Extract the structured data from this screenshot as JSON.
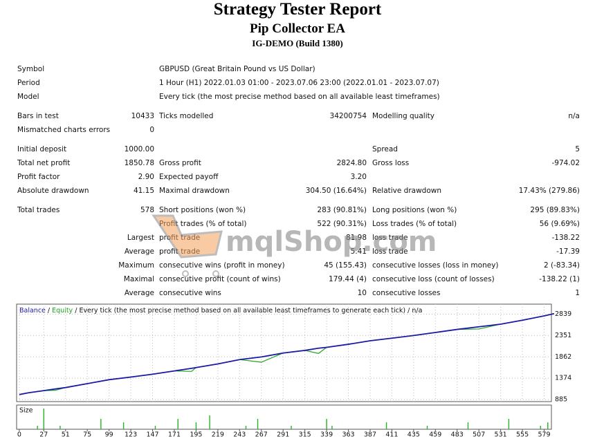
{
  "header": {
    "title": "Strategy Tester Report",
    "subtitle": "Pip Collector EA",
    "build": "IG-DEMO (Build 1380)"
  },
  "report": {
    "sections": [
      [
        [
          "Symbol",
          null,
          "GBPUSD (Great Britain Pound vs US Dollar)",
          null,
          null,
          null
        ],
        [
          "Period",
          null,
          "1 Hour (H1) 2022.01.03 01:00 - 2023.07.06 23:00 (2022.01.01 - 2023.07.07)",
          null,
          null,
          null
        ],
        [
          "Model",
          null,
          "Every tick (the most precise method based on all available least timeframes)",
          null,
          null,
          null
        ]
      ],
      [
        [
          "Bars in test",
          "10433",
          "Ticks modelled",
          "34200754",
          "Modelling quality",
          "n/a"
        ],
        [
          "Mismatched charts errors",
          "0",
          null,
          null,
          null,
          null
        ]
      ],
      [
        [
          "Initial deposit",
          "1000.00",
          null,
          null,
          "Spread",
          "5"
        ],
        [
          "Total net profit",
          "1850.78",
          "Gross profit",
          "2824.80",
          "Gross loss",
          "-974.02"
        ],
        [
          "Profit factor",
          "2.90",
          "Expected payoff",
          "3.20",
          null,
          null
        ],
        [
          "Absolute drawdown",
          "41.15",
          "Maximal drawdown",
          "304.50 (16.64%)",
          "Relative drawdown",
          "17.43% (279.86)"
        ]
      ],
      [
        [
          "Total trades",
          "578",
          "Short positions (won %)",
          "283 (90.81%)",
          "Long positions (won %)",
          "295 (89.83%)"
        ],
        [
          null,
          null,
          "Profit trades (% of total)",
          "522 (90.31%)",
          "Loss trades (% of total)",
          "56 (9.69%)"
        ],
        [
          null,
          "Largest",
          "profit trade",
          "81.98",
          "loss trade",
          "-138.22"
        ],
        [
          null,
          "Average",
          "profit trade",
          "5.41",
          "loss trade",
          "-17.39"
        ],
        [
          null,
          "Maximum",
          "consecutive wins (profit in money)",
          "45 (155.43)",
          "consecutive losses (loss in money)",
          "2 (-83.34)"
        ],
        [
          null,
          "Maximal",
          "consecutive profit (count of wins)",
          "179.44 (4)",
          "consecutive loss (count of losses)",
          "-138.22 (1)"
        ],
        [
          null,
          "Average",
          "consecutive wins",
          "10",
          "consecutive losses",
          "1"
        ]
      ]
    ]
  },
  "watermark": "mqlShop.com",
  "chart_data": {
    "type": "line",
    "description": "Every tick (the most precise method based on all available least timeframes to generate each tick)",
    "quality": "n/a",
    "x": [
      0,
      10,
      27,
      40,
      51,
      75,
      99,
      123,
      147,
      171,
      190,
      195,
      219,
      243,
      267,
      291,
      315,
      330,
      339,
      363,
      387,
      411,
      435,
      459,
      483,
      507,
      531,
      555,
      579,
      590
    ],
    "series": [
      {
        "name": "Balance",
        "color": "#1a1aa6",
        "values": [
          1000,
          1040,
          1090,
          1130,
          1160,
          1250,
          1340,
          1400,
          1465,
          1540,
          1600,
          1618,
          1700,
          1800,
          1860,
          1950,
          2010,
          2060,
          2080,
          2150,
          2230,
          2290,
          2350,
          2420,
          2490,
          2550,
          2610,
          2700,
          2800,
          2850
        ]
      },
      {
        "name": "Equity",
        "color": "#1ea01e",
        "values": [
          1000,
          1040,
          1090,
          1100,
          1160,
          1250,
          1340,
          1400,
          1465,
          1540,
          1530,
          1618,
          1700,
          1800,
          1740,
          1950,
          2010,
          1940,
          2080,
          2150,
          2230,
          2290,
          2350,
          2420,
          2490,
          2500,
          2610,
          2700,
          2800,
          2850
        ]
      }
    ],
    "xlim": [
      -3,
      587
    ],
    "ylim": [
      839,
      3068
    ],
    "yticks": [
      885,
      1374,
      1862,
      2351,
      2839
    ],
    "xticks": [
      0,
      27,
      51,
      75,
      99,
      123,
      147,
      171,
      195,
      219,
      243,
      267,
      291,
      315,
      339,
      363,
      387,
      411,
      435,
      459,
      483,
      507,
      531,
      555,
      579
    ],
    "grid": true,
    "size": {
      "label": "Size",
      "color": "#22b422",
      "x": [
        20,
        27,
        45,
        90,
        115,
        150,
        175,
        195,
        210,
        250,
        263,
        300,
        339,
        345,
        405,
        450,
        495,
        540,
        575,
        583
      ],
      "values": [
        1,
        6,
        1,
        3,
        2,
        1,
        3,
        2,
        4,
        1,
        3,
        1,
        3,
        1,
        2,
        1,
        2,
        3,
        1,
        2
      ]
    }
  }
}
